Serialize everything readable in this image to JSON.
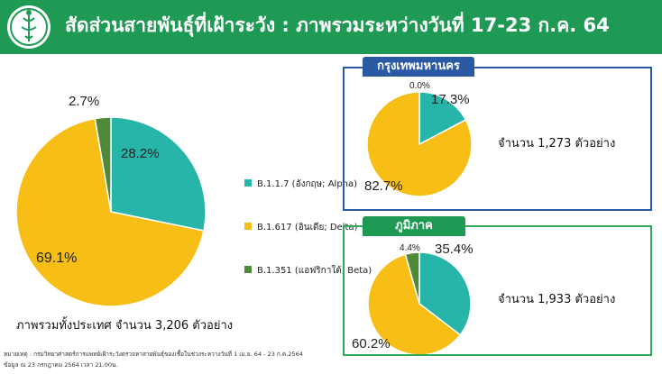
{
  "header": {
    "title": "สัดส่วนสายพันธุ์ที่เฝ้าระวัง : ภาพรวมระหว่างวันที่ 17-23 ก.ค. 64"
  },
  "colors": {
    "alpha": "#26b5a8",
    "delta": "#f7be16",
    "beta": "#4e8a3a",
    "header": "#1e9a55"
  },
  "legend": [
    {
      "label": "B.1.1.7 (อังกฤษ; Alpha)",
      "color": "#26b5a8"
    },
    {
      "label": "B.1.617 (อินเดีย; Delta)",
      "color": "#f7be16"
    },
    {
      "label": "B.1.351 (แอฟริกาใต้; Beta)",
      "color": "#4e8a3a"
    }
  ],
  "national": {
    "total_label": "ภาพรวมทั้งประเทศ จำนวน 3,206 ตัวอย่าง",
    "labels": {
      "alpha": "28.2%",
      "delta": "69.1%",
      "beta": "2.7%"
    }
  },
  "bangkok": {
    "tab": "กรุงเทพมหานคร",
    "sample_label": "จำนวน 1,273 ตัวอย่าง",
    "labels": {
      "alpha": "17.3%",
      "delta": "82.7%",
      "beta": "0.0%"
    }
  },
  "region": {
    "tab": "ภูมิภาค",
    "sample_label": "จำนวน 1,933 ตัวอย่าง",
    "labels": {
      "alpha": "35.4%",
      "delta": "60.2%",
      "beta": "4.4%"
    }
  },
  "footnote": {
    "line1": "หมายเหตุ : กรมวิทยาศาสตร์การแพทย์เฝ้าระวังตรวจหาสายพันธุ์ของเชื้อในช่วงระหว่างวันที่ 1 เม.ย. 64 - 23 ก.ค.2564",
    "line2": "ข้อมูล ณ 23 กรกฎาคม 2564 เวลา 21.00น."
  },
  "chart_data": [
    {
      "type": "pie",
      "title": "",
      "categories": [
        "B.1.1.7 (อังกฤษ; Alpha)",
        "B.1.617 (อินเดีย; Delta)",
        "B.1.351 (แอฟริกาใต้; Beta)"
      ],
      "values": [
        28.2,
        69.1,
        2.7
      ]
    },
    {
      "type": "pie",
      "title": "กรุงเทพมหานคร",
      "categories": [
        "B.1.1.7 (อังกฤษ; Alpha)",
        "B.1.617 (อินเดีย; Delta)",
        "B.1.351 (แอฟริกาใต้; Beta)"
      ],
      "values": [
        17.3,
        82.7,
        0.0
      ]
    },
    {
      "type": "pie",
      "title": "ภูมิภาค",
      "categories": [
        "B.1.1.7 (อังกฤษ; Alpha)",
        "B.1.617 (อินเดีย; Delta)",
        "B.1.351 (แอฟริกาใต้; Beta)"
      ],
      "values": [
        35.4,
        60.2,
        4.4
      ]
    }
  ]
}
